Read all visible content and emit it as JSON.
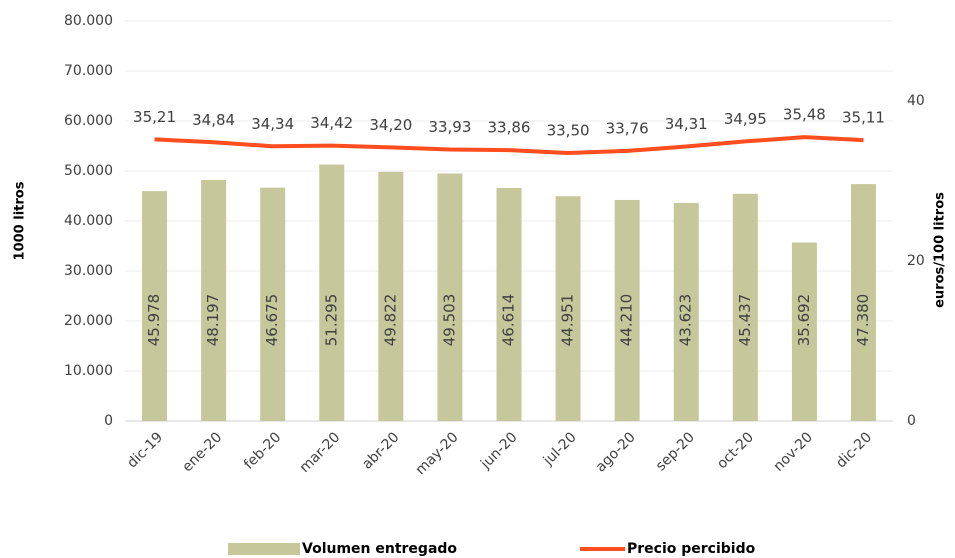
{
  "chart_data": {
    "type": "bar",
    "categories": [
      "dic-19",
      "ene-20",
      "feb-20",
      "mar-20",
      "abr-20",
      "may-20",
      "jun-20",
      "jul-20",
      "ago-20",
      "sep-20",
      "oct-20",
      "nov-20",
      "dic-20"
    ],
    "series": [
      {
        "name": "Volumen entregado",
        "type": "bar",
        "color": "#c6c79b",
        "values": [
          45978,
          48197,
          46675,
          51295,
          49822,
          49503,
          46614,
          44951,
          44210,
          43623,
          45437,
          35692,
          47380
        ],
        "value_labels": [
          "45.978",
          "48.197",
          "46.675",
          "51.295",
          "49.822",
          "49.503",
          "46.614",
          "44.951",
          "44.210",
          "43.623",
          "45.437",
          "35.692",
          "47.380"
        ]
      },
      {
        "name": "Precio percibido",
        "type": "line",
        "axis": "y2",
        "color": "#ff4d1f",
        "values": [
          35.21,
          34.84,
          34.34,
          34.42,
          34.2,
          33.93,
          33.86,
          33.5,
          33.76,
          34.31,
          34.95,
          35.48,
          35.11
        ],
        "value_labels": [
          "35,21",
          "34,84",
          "34,34",
          "34,42",
          "34,20",
          "33,93",
          "33,86",
          "33,50",
          "33,76",
          "34,31",
          "34,95",
          "35,48",
          "35,11"
        ]
      }
    ],
    "ylabel": "1000 litros",
    "y2label": "euros/100 litros",
    "ylim": [
      0,
      80000
    ],
    "yticks": [
      0,
      {
        "value": 10000,
        "label": "10.000"
      },
      {
        "value": 20000,
        "label": "20.000"
      },
      {
        "value": 30000,
        "label": "30.000"
      },
      {
        "value": 40000,
        "label": "40.000"
      },
      {
        "value": 50000,
        "label": "50.000"
      },
      {
        "value": 60000,
        "label": "60.000"
      },
      {
        "value": 70000,
        "label": "70.000"
      },
      {
        "value": 80000,
        "label": "80.000"
      }
    ],
    "y2lim": [
      0,
      50
    ],
    "y2ticks": [
      0,
      20,
      40
    ],
    "grid": true,
    "legend": "bottom"
  }
}
